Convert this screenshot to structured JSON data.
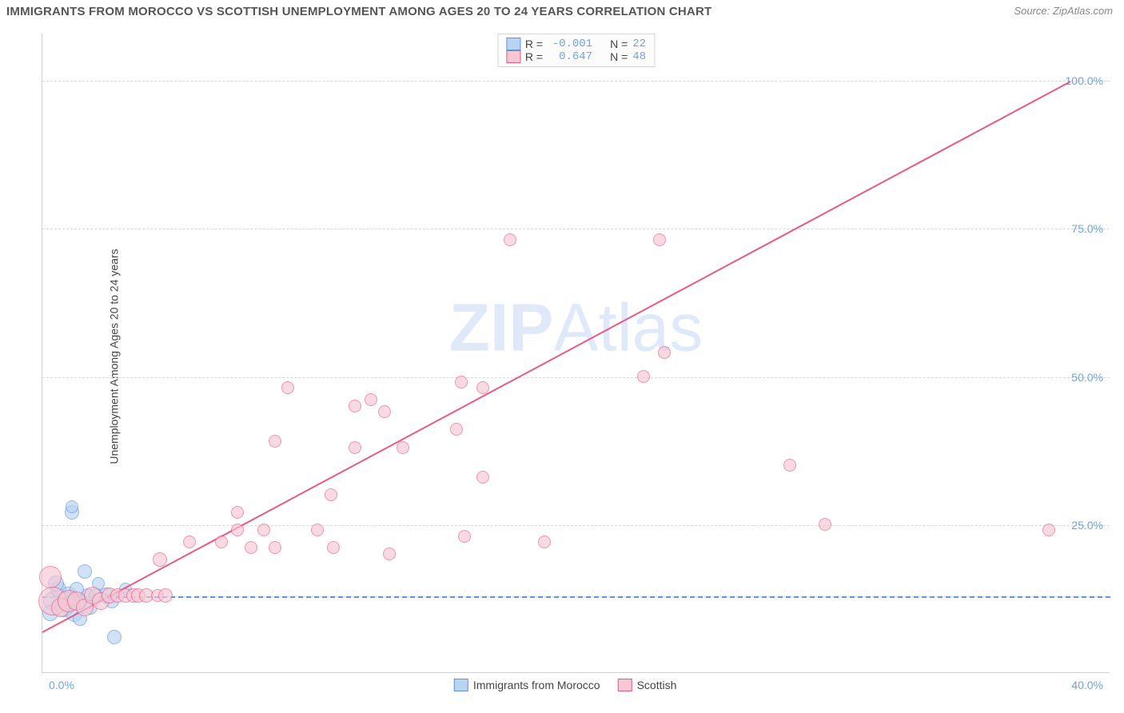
{
  "title": "IMMIGRANTS FROM MOROCCO VS SCOTTISH UNEMPLOYMENT AMONG AGES 20 TO 24 YEARS CORRELATION CHART",
  "source": "Source: ZipAtlas.com",
  "ylabel": "Unemployment Among Ages 20 to 24 years",
  "watermark_a": "ZIP",
  "watermark_b": "Atlas",
  "chart": {
    "type": "scatter",
    "xlim": [
      0,
      40
    ],
    "ylim": [
      0,
      108
    ],
    "xtick_lo": "0.0%",
    "xtick_hi": "40.0%",
    "yticks": [
      25,
      50,
      75,
      100
    ],
    "ytick_labels": [
      "25.0%",
      "50.0%",
      "75.0%",
      "100.0%"
    ],
    "extra_grid_y": [
      13
    ],
    "background": "#ffffff",
    "grid_color": "#d8d8d8",
    "axis_color": "#cfcfcf",
    "tick_color": "#6da3e8",
    "label_fontsize": 14,
    "title_fontsize": 15
  },
  "series": [
    {
      "key": "morocco",
      "label": "Immigrants from Morocco",
      "fill": "#b9d4f3",
      "stroke": "#5f93db",
      "marker_r": 9,
      "R": "-0.001",
      "N": "22",
      "regression": {
        "x1": 0,
        "y1": 13,
        "x2": 40,
        "y2": 13,
        "color": "#5f93db",
        "width": 2,
        "dash": true
      },
      "points": [
        {
          "x": 0.4,
          "y": 12,
          "r": 12
        },
        {
          "x": 0.6,
          "y": 14,
          "r": 10
        },
        {
          "x": 0.8,
          "y": 11,
          "r": 12
        },
        {
          "x": 1.0,
          "y": 13,
          "r": 11
        },
        {
          "x": 1.1,
          "y": 27,
          "r": 9
        },
        {
          "x": 1.1,
          "y": 28,
          "r": 8
        },
        {
          "x": 1.2,
          "y": 10,
          "r": 11
        },
        {
          "x": 1.4,
          "y": 12,
          "r": 10
        },
        {
          "x": 1.4,
          "y": 9,
          "r": 9
        },
        {
          "x": 1.6,
          "y": 17,
          "r": 9
        },
        {
          "x": 1.7,
          "y": 13,
          "r": 9
        },
        {
          "x": 1.8,
          "y": 11,
          "r": 9
        },
        {
          "x": 2.0,
          "y": 13,
          "r": 9
        },
        {
          "x": 2.1,
          "y": 15,
          "r": 8
        },
        {
          "x": 2.4,
          "y": 13,
          "r": 10
        },
        {
          "x": 2.6,
          "y": 12,
          "r": 9
        },
        {
          "x": 2.7,
          "y": 6,
          "r": 9
        },
        {
          "x": 3.1,
          "y": 14,
          "r": 8
        },
        {
          "x": 0.3,
          "y": 10,
          "r": 10
        },
        {
          "x": 0.5,
          "y": 15,
          "r": 10
        },
        {
          "x": 0.9,
          "y": 12,
          "r": 12
        },
        {
          "x": 1.3,
          "y": 14,
          "r": 9
        }
      ]
    },
    {
      "key": "scottish",
      "label": "Scottish",
      "fill": "#f7c7d3",
      "stroke": "#e75a87",
      "marker_r": 9,
      "R": "0.647",
      "N": "48",
      "regression": {
        "x1": 0,
        "y1": 7,
        "x2": 38.5,
        "y2": 100,
        "color": "#e75a87",
        "width": 2,
        "dash": false
      },
      "points": [
        {
          "x": 0.3,
          "y": 16,
          "r": 14
        },
        {
          "x": 0.4,
          "y": 12,
          "r": 18
        },
        {
          "x": 0.7,
          "y": 11,
          "r": 12
        },
        {
          "x": 1.0,
          "y": 12,
          "r": 14
        },
        {
          "x": 1.3,
          "y": 12,
          "r": 12
        },
        {
          "x": 1.6,
          "y": 11,
          "r": 11
        },
        {
          "x": 1.9,
          "y": 13,
          "r": 11
        },
        {
          "x": 2.2,
          "y": 12,
          "r": 11
        },
        {
          "x": 2.5,
          "y": 13,
          "r": 10
        },
        {
          "x": 2.8,
          "y": 13,
          "r": 9
        },
        {
          "x": 3.1,
          "y": 13,
          "r": 9
        },
        {
          "x": 3.4,
          "y": 13,
          "r": 9
        },
        {
          "x": 3.6,
          "y": 13,
          "r": 9
        },
        {
          "x": 3.9,
          "y": 13,
          "r": 9
        },
        {
          "x": 4.3,
          "y": 13,
          "r": 8
        },
        {
          "x": 4.6,
          "y": 13,
          "r": 9
        },
        {
          "x": 4.4,
          "y": 19,
          "r": 9
        },
        {
          "x": 5.5,
          "y": 22,
          "r": 8
        },
        {
          "x": 6.7,
          "y": 22,
          "r": 8
        },
        {
          "x": 7.3,
          "y": 24,
          "r": 8
        },
        {
          "x": 7.3,
          "y": 27,
          "r": 8
        },
        {
          "x": 7.8,
          "y": 21,
          "r": 8
        },
        {
          "x": 8.3,
          "y": 24,
          "r": 8
        },
        {
          "x": 8.7,
          "y": 39,
          "r": 8
        },
        {
          "x": 8.7,
          "y": 21,
          "r": 8
        },
        {
          "x": 9.2,
          "y": 48,
          "r": 8
        },
        {
          "x": 10.3,
          "y": 24,
          "r": 8
        },
        {
          "x": 10.9,
          "y": 21,
          "r": 8
        },
        {
          "x": 10.8,
          "y": 30,
          "r": 8
        },
        {
          "x": 11.7,
          "y": 38,
          "r": 8
        },
        {
          "x": 11.7,
          "y": 45,
          "r": 8
        },
        {
          "x": 12.3,
          "y": 46,
          "r": 8
        },
        {
          "x": 12.8,
          "y": 44,
          "r": 8
        },
        {
          "x": 13.0,
          "y": 20,
          "r": 8
        },
        {
          "x": 13.5,
          "y": 38,
          "r": 8
        },
        {
          "x": 15.5,
          "y": 41,
          "r": 8
        },
        {
          "x": 15.7,
          "y": 49,
          "r": 8
        },
        {
          "x": 15.8,
          "y": 23,
          "r": 8
        },
        {
          "x": 16.5,
          "y": 48,
          "r": 8
        },
        {
          "x": 16.5,
          "y": 33,
          "r": 8
        },
        {
          "x": 17.5,
          "y": 73,
          "r": 8
        },
        {
          "x": 18.8,
          "y": 22,
          "r": 8
        },
        {
          "x": 22.5,
          "y": 50,
          "r": 8
        },
        {
          "x": 23.1,
          "y": 73,
          "r": 8
        },
        {
          "x": 23.3,
          "y": 54,
          "r": 8
        },
        {
          "x": 28.0,
          "y": 35,
          "r": 8
        },
        {
          "x": 29.3,
          "y": 25,
          "r": 8
        },
        {
          "x": 37.7,
          "y": 24,
          "r": 8
        }
      ]
    }
  ],
  "legend_top": {
    "R_label": "R = ",
    "N_label": "N = "
  },
  "legend_bot": [
    {
      "series": 0
    },
    {
      "series": 1
    }
  ]
}
